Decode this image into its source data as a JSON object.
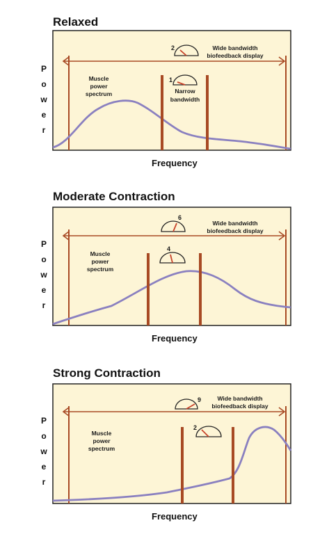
{
  "y_axis_label_letters": [
    "P",
    "o",
    "w",
    "e",
    "r"
  ],
  "x_axis_label": "Frequency",
  "colors": {
    "background": "#fdf5d6",
    "frame": "#222222",
    "marker": "#a84a24",
    "spectrum": "#8a80c0",
    "needle": "#c8432a"
  },
  "panels": [
    {
      "title": "Relaxed",
      "spectrum_label": [
        "Muscle",
        "power",
        "spectrum"
      ],
      "wide_label": [
        "Wide bandwidth",
        "biofeedback display"
      ],
      "wide_gauge_value": "2",
      "narrow_label": [
        "Narrow",
        "bandwidth"
      ],
      "narrow_gauge_value": "1"
    },
    {
      "title": "Moderate Contraction",
      "spectrum_label": [
        "Muscle",
        "power",
        "spectrum"
      ],
      "wide_label": [
        "Wide bandwidth",
        "biofeedback display"
      ],
      "wide_gauge_value": "6",
      "narrow_label": [],
      "narrow_gauge_value": "4"
    },
    {
      "title": "Strong Contraction",
      "spectrum_label": [
        "Muscle",
        "power",
        "spectrum"
      ],
      "wide_label": [
        "Wide bandwidth",
        "biofeedback display"
      ],
      "wide_gauge_value": "9",
      "narrow_label": [],
      "narrow_gauge_value": "2"
    }
  ]
}
